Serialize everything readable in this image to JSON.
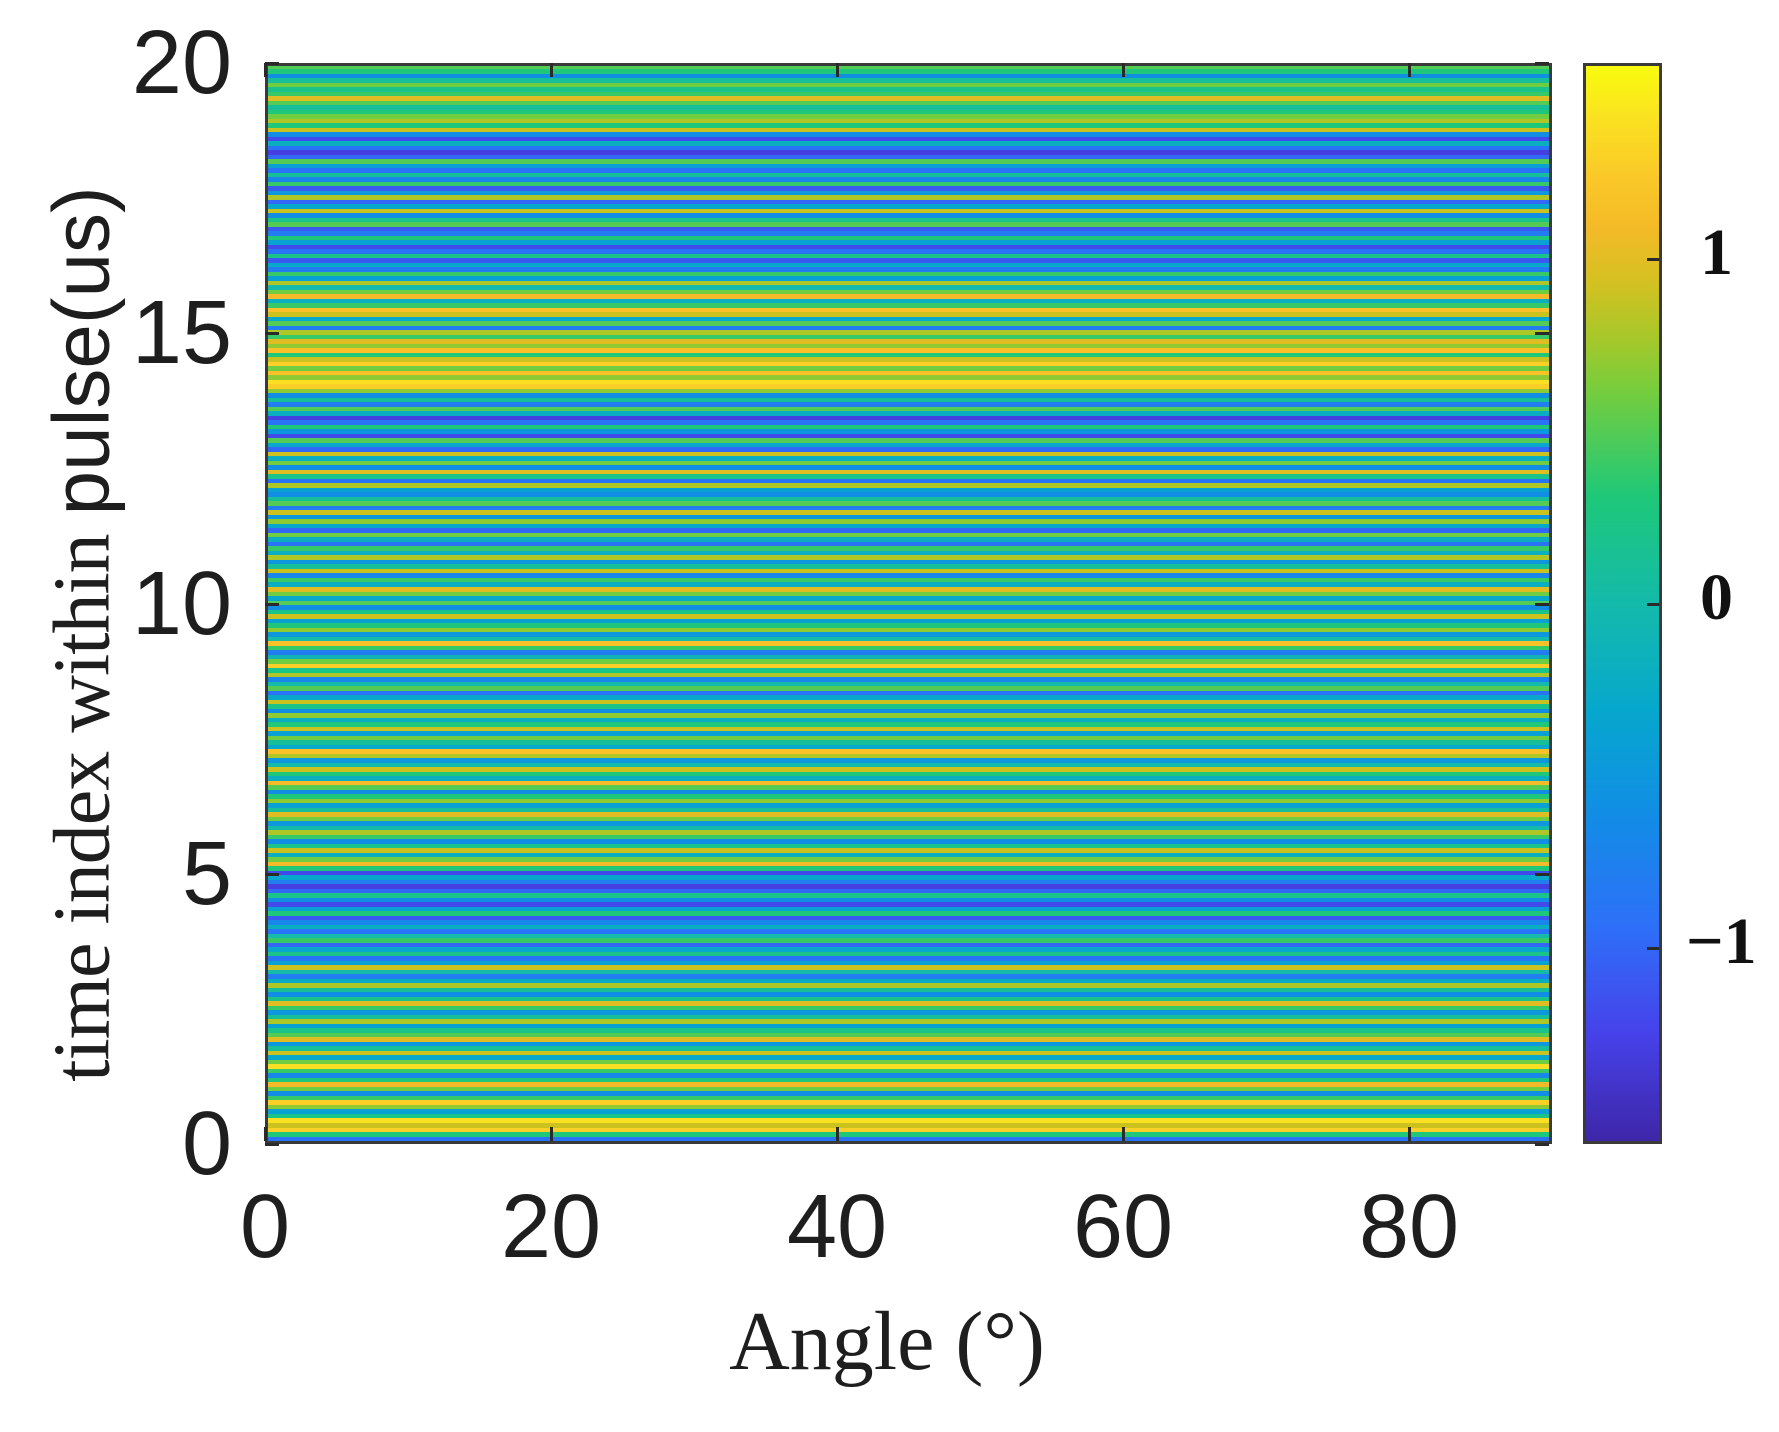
{
  "chart_data": {
    "type": "heatmap",
    "title": "",
    "xlabel": "Angle (°)",
    "ylabel_parts": [
      "time index within ",
      "pulse(us)"
    ],
    "ylabel": "time index within pulse(us)",
    "xlim": [
      0,
      90
    ],
    "ylim": [
      0,
      20
    ],
    "x_ticks": [
      0,
      20,
      40,
      60,
      80
    ],
    "x_tick_labels": [
      "0",
      "20",
      "40",
      "60",
      "80"
    ],
    "y_ticks": [
      0,
      5,
      10,
      15,
      20
    ],
    "y_tick_labels": [
      "0",
      "5",
      "10",
      "15",
      "20"
    ],
    "grid": false,
    "colormap": "parula",
    "colorbar": {
      "clim": [
        -1.57,
        1.57
      ],
      "ticks": [
        -1,
        0,
        1
      ],
      "tick_labels": [
        "−1",
        "0",
        "1"
      ],
      "position": "right"
    },
    "description": "Values are constant across angle (horizontal stripes); each row is one time sample within the pulse.",
    "samples_per_us": 12,
    "row_values_bottom_to_top": [
      -0.9,
      0.3,
      1.3,
      0.9,
      1.4,
      0.2,
      -0.4,
      0.7,
      1.3,
      0.4,
      -0.6,
      0.6,
      1.1,
      0.3,
      -0.7,
      0.4,
      1.4,
      0.6,
      -0.3,
      0.9,
      0.1,
      -0.5,
      1.0,
      0.5,
      0.2,
      -0.4,
      0.8,
      0.1,
      -0.5,
      0.4,
      1.0,
      0.2,
      -0.6,
      0.1,
      0.8,
      -0.2,
      -0.8,
      0.0,
      0.9,
      -0.4,
      -0.9,
      0.2,
      -0.3,
      -1.0,
      0.4,
      0.0,
      -0.9,
      -0.2,
      -0.7,
      -1.1,
      0.3,
      -0.4,
      -1.2,
      -0.6,
      0.2,
      -1.0,
      -1.3,
      -0.8,
      -0.3,
      -1.2,
      0.3,
      1.1,
      0.6,
      -0.2,
      0.9,
      0.2,
      -0.6,
      0.4,
      0.8,
      0.0,
      -0.5,
      0.6,
      1.0,
      0.1,
      -0.4,
      0.7,
      0.3,
      -0.6,
      0.5,
      1.1,
      -0.2,
      0.3,
      0.9,
      0.0,
      -0.5,
      0.8,
      1.2,
      -0.3,
      0.1,
      0.6,
      -0.4,
      0.9,
      0.3,
      -0.2,
      0.7,
      -0.6,
      0.2,
      0.9,
      -0.3,
      -0.9,
      0.5,
      0.0,
      -0.7,
      0.8,
      0.2,
      1.3,
      0.6,
      -0.1,
      -0.8,
      0.4,
      1.2,
      0.0,
      -0.5,
      0.7,
      0.3,
      -0.4,
      0.9,
      0.2,
      -0.6,
      0.5,
      -0.3,
      0.6,
      1.0,
      -0.2,
      0.4,
      -0.7,
      0.9,
      0.1,
      -0.5,
      0.8,
      -0.2,
      0.4,
      -0.9,
      -0.2,
      0.6,
      -1.0,
      -0.3,
      0.7,
      -0.5,
      0.9,
      -0.8,
      0.5,
      0.1,
      -0.6,
      -0.4,
      0.8,
      -0.9,
      0.2,
      1.0,
      -0.6,
      0.6,
      -0.2,
      0.9,
      -1.0,
      -0.3,
      0.5,
      -1.2,
      -0.5,
      0.3,
      -0.9,
      -1.3,
      -0.2,
      0.5,
      -0.8,
      0.1,
      -0.6,
      0.7,
      1.3,
      1.4,
      0.7,
      1.2,
      0.6,
      1.3,
      0.9,
      0.3,
      1.2,
      0.7,
      1.0,
      0.4,
      0.8,
      -0.8,
      0.5,
      -0.3,
      0.9,
      1.2,
      0.4,
      -0.2,
      1.1,
      0.6,
      0.0,
      0.8,
      -0.4,
      0.4,
      -0.8,
      -0.3,
      -1.1,
      0.2,
      -0.9,
      -1.2,
      -0.4,
      0.3,
      -0.8,
      -1.1,
      0.5,
      0.2,
      -0.6,
      0.9,
      -0.3,
      -1.0,
      0.8,
      -0.5,
      -1.1,
      0.4,
      -0.7,
      0.1,
      -0.9,
      -0.4,
      0.5,
      -1.0,
      -1.3,
      -0.9,
      -0.2,
      -1.2,
      -0.6,
      0.9,
      0.3,
      0.8,
      0.6,
      0.3,
      0.1,
      0.5,
      1.0,
      0.4,
      0.2,
      0.6,
      0.1,
      -0.6,
      0.3,
      0.5,
      -0.8
    ]
  },
  "colors": {
    "axes_border": "#3a3a3a",
    "text": "#1e1e1e",
    "background": "#ffffff"
  }
}
